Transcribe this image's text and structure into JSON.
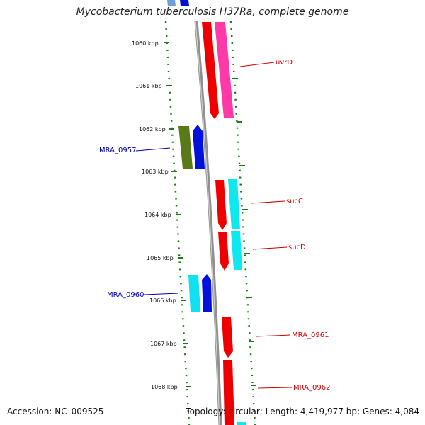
{
  "title": "Mycobacterium tuberculosis H37Ra, complete genome",
  "footer": {
    "accession": "Accession: NC_009525",
    "stats": "Topology: circular; Length: 4,419,977 bp; Genes: 4,084"
  },
  "colors": {
    "forward_label": "#cc0000",
    "reverse_label": "#0000aa",
    "backbone": "#909090",
    "tick": "#1a7a1a"
  },
  "ticks": [
    "1060 kbp",
    "1061 kbp",
    "1062 kbp",
    "1063 kbp",
    "1064 kbp",
    "1065 kbp",
    "1066 kbp",
    "1067 kbp",
    "1068 kbp"
  ],
  "gene_labels": [
    {
      "text": "uvrD1",
      "strand": "forward"
    },
    {
      "text": "MRA_0957",
      "strand": "reverse"
    },
    {
      "text": "sucC",
      "strand": "forward"
    },
    {
      "text": "sucD",
      "strand": "forward"
    },
    {
      "text": "MRA_0960",
      "strand": "reverse"
    },
    {
      "text": "MRA_0961",
      "strand": "forward"
    },
    {
      "text": "MRA_0962",
      "strand": "forward"
    }
  ]
}
